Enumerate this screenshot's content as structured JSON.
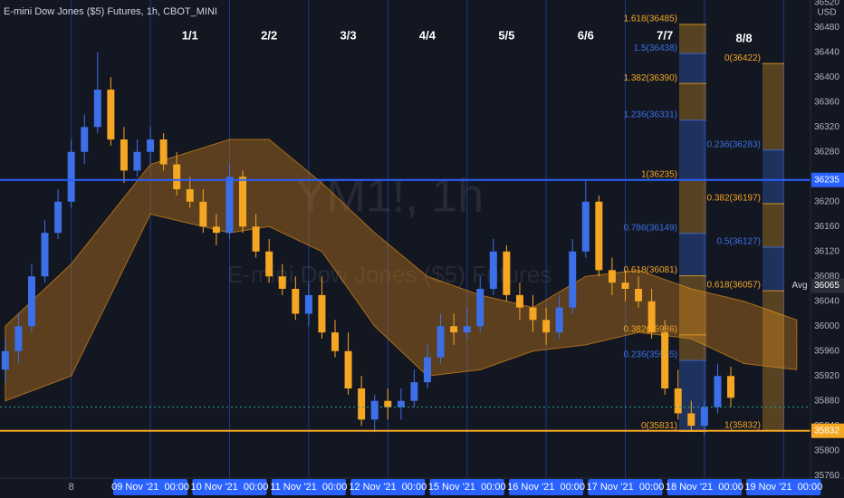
{
  "chart_data": {
    "type": "candlestick",
    "title": "E-mini Dow Jones ($5) Futures, 1h, CBOT_MINI",
    "watermark": "YM1!, 1h",
    "watermark_subtitle": "E-mini Dow Jones ($5) Futures",
    "currency": "USD",
    "up_color": "#3d6fe8",
    "down_color": "#f5a623",
    "open": [
      35930,
      35960,
      36000,
      36080,
      36150,
      36200,
      36280,
      36320,
      36380,
      36300,
      36250,
      36280,
      36300,
      36260,
      36220,
      36200,
      36160,
      36150,
      36240,
      36160,
      36120,
      36080,
      36060,
      36020,
      36050,
      35990,
      35960,
      35900,
      35850,
      35880,
      35870,
      35880,
      35910,
      35950,
      36000,
      35990,
      36000,
      36060,
      36120,
      36050,
      36030,
      36010,
      35990,
      36030,
      36120,
      36200,
      36090,
      36070,
      36060,
      36040,
      35990,
      35900,
      35860,
      35840,
      35870,
      35920
    ],
    "high": [
      35980,
      36020,
      36100,
      36170,
      36220,
      36300,
      36340,
      36440,
      36400,
      36320,
      36300,
      36320,
      36310,
      36280,
      36240,
      36220,
      36180,
      36260,
      36250,
      36180,
      36140,
      36100,
      36080,
      36070,
      36080,
      36010,
      35990,
      35920,
      35890,
      35900,
      35900,
      35930,
      35970,
      36020,
      36020,
      36030,
      36080,
      36140,
      36130,
      36070,
      36050,
      36030,
      36050,
      36140,
      36235,
      36210,
      36110,
      36090,
      36080,
      36060,
      36010,
      35930,
      35880,
      35880,
      35940,
      35935
    ],
    "low": [
      35910,
      35940,
      35990,
      36070,
      36140,
      36190,
      36260,
      36310,
      36290,
      36230,
      36240,
      36260,
      36250,
      36210,
      36190,
      36150,
      36130,
      36140,
      36150,
      36110,
      36070,
      36050,
      36010,
      36000,
      35980,
      35950,
      35890,
      35840,
      35830,
      35850,
      35850,
      35870,
      35900,
      35940,
      35970,
      35980,
      35990,
      36050,
      36040,
      36010,
      35990,
      35970,
      35980,
      36020,
      36110,
      36080,
      36050,
      36040,
      36030,
      35980,
      35890,
      35850,
      35830,
      35825,
      35860,
      35870
    ],
    "close": [
      35960,
      36000,
      36080,
      36150,
      36200,
      36280,
      36320,
      36380,
      36300,
      36250,
      36280,
      36300,
      36260,
      36220,
      36200,
      36160,
      36150,
      36240,
      36160,
      36120,
      36080,
      36060,
      36020,
      36050,
      35990,
      35960,
      35900,
      35850,
      35880,
      35870,
      35880,
      35910,
      35950,
      36000,
      35990,
      36000,
      36060,
      36120,
      36050,
      36030,
      36010,
      35990,
      36030,
      36120,
      36200,
      36090,
      36070,
      36060,
      36040,
      35990,
      35900,
      35860,
      35840,
      35870,
      35920,
      35885
    ],
    "cloud": {
      "color": "#c77d1a",
      "x": [
        0,
        5,
        11,
        17,
        20,
        24,
        28,
        32,
        36,
        40,
        44,
        48,
        52,
        56,
        60
      ],
      "upper": [
        36000,
        36100,
        36260,
        36300,
        36300,
        36230,
        36150,
        36080,
        36050,
        36030,
        36080,
        36090,
        36060,
        36040,
        36010
      ],
      "lower": [
        35880,
        35920,
        36180,
        36150,
        36160,
        36120,
        36000,
        35920,
        35930,
        35960,
        35970,
        35990,
        35980,
        35940,
        35930
      ]
    },
    "xlim": [
      -0.4,
      61.04
    ],
    "ylim": [
      35756,
      36524
    ],
    "yticks": [
      35760,
      35800,
      35840,
      35880,
      35920,
      35960,
      36000,
      36040,
      36080,
      36120,
      36160,
      36200,
      36240,
      36280,
      36320,
      36360,
      36400,
      36440,
      36480,
      36520
    ],
    "xticks": [
      {
        "value": 5,
        "label": "8"
      },
      {
        "value": 11,
        "label": "09 Nov '21  00:00"
      },
      {
        "value": 17,
        "label": "10 Nov '21  00:00"
      },
      {
        "value": 23,
        "label": "11 Nov '21  00:00"
      },
      {
        "value": 29,
        "label": "12 Nov '21  00:00"
      },
      {
        "value": 35,
        "label": "15 Nov '21  00:00"
      },
      {
        "value": 41,
        "label": "16 Nov '21  00:00"
      },
      {
        "value": 47,
        "label": "17 Nov '21  00:00"
      },
      {
        "value": 53,
        "label": "18 Nov '21  00:00"
      },
      {
        "value": 59,
        "label": "19 Nov '21  00:00"
      }
    ],
    "session_labels": [
      "1/1",
      "2/2",
      "3/3",
      "4/4",
      "5/5",
      "6/6",
      "7/7",
      "8/8"
    ],
    "price_lines": [
      {
        "value": 36235,
        "color": "#2962ff"
      },
      {
        "value": 35832,
        "color": "#f5a623"
      }
    ],
    "dotted_line": {
      "value": 35870,
      "color": "#26a69a"
    },
    "avg": {
      "label": "Avg",
      "value": 36065
    },
    "fibs": [
      {
        "levels": [
          {
            "label": "1.618(36485)",
            "value": 36485,
            "color": "#f5a623"
          },
          {
            "label": "1.5(36438)",
            "value": 36438,
            "color": "#3d6fe8"
          },
          {
            "label": "1.382(36390)",
            "value": 36390,
            "color": "#f5a623"
          },
          {
            "label": "1.236(36331)",
            "value": 36331,
            "color": "#3d6fe8"
          },
          {
            "label": "1(36235)",
            "value": 36235,
            "color": "#f5a623"
          },
          {
            "label": "0.786(36149)",
            "value": 36149,
            "color": "#3d6fe8"
          },
          {
            "label": "0.618(36081)",
            "value": 36081,
            "color": "#f5a623"
          },
          {
            "label": "0.382(35986)",
            "value": 35986,
            "color": "#f5a623"
          },
          {
            "label": "0.236(35945)",
            "value": 35945,
            "color": "#3d6fe8"
          },
          {
            "label": "0(35831)",
            "value": 35831,
            "color": "#f5a623"
          }
        ]
      },
      {
        "levels": [
          {
            "label": "0(36422)",
            "value": 36422,
            "color": "#f5a623"
          },
          {
            "label": "0.236(36283)",
            "value": 36283,
            "color": "#3d6fe8"
          },
          {
            "label": "0.382(36197)",
            "value": 36197,
            "color": "#f5a623"
          },
          {
            "label": "0.5(36127)",
            "value": 36127,
            "color": "#3d6fe8"
          },
          {
            "label": "0.618(36057)",
            "value": 36057,
            "color": "#f5a623"
          },
          {
            "label": "1(35832)",
            "value": 35832,
            "color": "#f5a623"
          }
        ]
      }
    ]
  }
}
